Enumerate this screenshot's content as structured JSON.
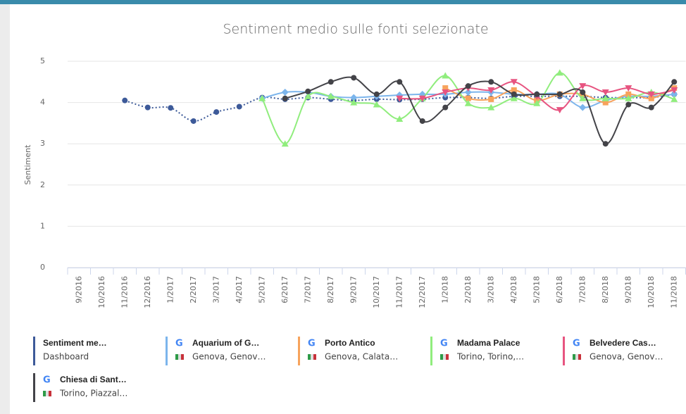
{
  "chart_data": {
    "type": "line",
    "title": "Sentiment medio sulle fonti selezionate",
    "ylabel": "Sentiment",
    "ylim": [
      0,
      5
    ],
    "yticks": [
      0,
      1,
      2,
      3,
      4,
      5
    ],
    "grid": true,
    "categories": [
      "9/2016",
      "10/2016",
      "11/2016",
      "12/2016",
      "1/2017",
      "2/2017",
      "3/2017",
      "4/2017",
      "5/2017",
      "6/2017",
      "7/2017",
      "8/2017",
      "9/2017",
      "10/2017",
      "11/2017",
      "12/2017",
      "1/2018",
      "2/2018",
      "3/2018",
      "4/2018",
      "5/2018",
      "6/2018",
      "7/2018",
      "8/2018",
      "9/2018",
      "10/2018",
      "11/2018"
    ],
    "series": [
      {
        "name": "Sentiment me…",
        "subtitle": "Dashboard",
        "color": "#3d5a99",
        "dashed": true,
        "marker": "circle",
        "values": [
          null,
          null,
          4.05,
          3.88,
          3.87,
          3.55,
          3.77,
          3.9,
          4.12,
          4.08,
          4.12,
          4.08,
          4.05,
          4.08,
          4.07,
          4.08,
          4.12,
          4.12,
          4.1,
          4.15,
          4.15,
          4.15,
          4.15,
          4.12,
          4.12,
          4.12,
          4.2
        ]
      },
      {
        "name": "Aquarium of G…",
        "subtitle": "Genova, Genov…",
        "source": "G",
        "color": "#7cb5ec",
        "marker": "diamond",
        "values": [
          null,
          null,
          null,
          null,
          null,
          null,
          null,
          null,
          4.1,
          4.25,
          4.25,
          4.15,
          4.12,
          4.15,
          4.18,
          4.2,
          4.2,
          4.25,
          4.25,
          4.2,
          4.2,
          4.2,
          3.88,
          4.05,
          4.15,
          4.15,
          4.2
        ]
      },
      {
        "name": "Porto Antico",
        "subtitle": "Genova, Calata…",
        "source": "G",
        "color": "#f7a35c",
        "marker": "square",
        "values": [
          null,
          null,
          null,
          null,
          null,
          null,
          null,
          null,
          null,
          null,
          null,
          null,
          null,
          null,
          null,
          null,
          4.35,
          4.1,
          4.08,
          4.3,
          4.05,
          4.2,
          4.2,
          4.0,
          4.2,
          4.1,
          4.35
        ]
      },
      {
        "name": "Madama Palace",
        "subtitle": "Torino, Torino,…",
        "source": "G",
        "color": "#90ed7d",
        "marker": "triangle",
        "values": [
          null,
          null,
          null,
          null,
          null,
          null,
          null,
          null,
          4.1,
          3.0,
          4.15,
          4.15,
          4.0,
          3.95,
          3.6,
          4.1,
          4.65,
          3.98,
          3.88,
          4.1,
          3.98,
          4.72,
          4.1,
          4.1,
          4.1,
          4.25,
          4.08
        ]
      },
      {
        "name": "Belvedere Cas…",
        "subtitle": "Genova, Genov…",
        "source": "G",
        "color": "#e75480",
        "marker": "triangle-down",
        "values": [
          null,
          null,
          null,
          null,
          null,
          null,
          null,
          null,
          null,
          null,
          null,
          null,
          null,
          null,
          4.1,
          4.1,
          4.25,
          4.35,
          4.3,
          4.5,
          4.15,
          3.82,
          4.4,
          4.25,
          4.35,
          4.2,
          4.3
        ]
      },
      {
        "name": "Chiesa di Sant…",
        "subtitle": "Torino, Piazzal…",
        "source": "G",
        "color": "#434348",
        "marker": "circle",
        "values": [
          null,
          null,
          null,
          null,
          null,
          null,
          null,
          null,
          null,
          4.1,
          4.27,
          4.5,
          4.6,
          4.2,
          4.5,
          3.55,
          3.88,
          4.4,
          4.5,
          4.2,
          4.2,
          4.2,
          4.25,
          3.0,
          3.95,
          3.88,
          4.5
        ]
      }
    ]
  }
}
